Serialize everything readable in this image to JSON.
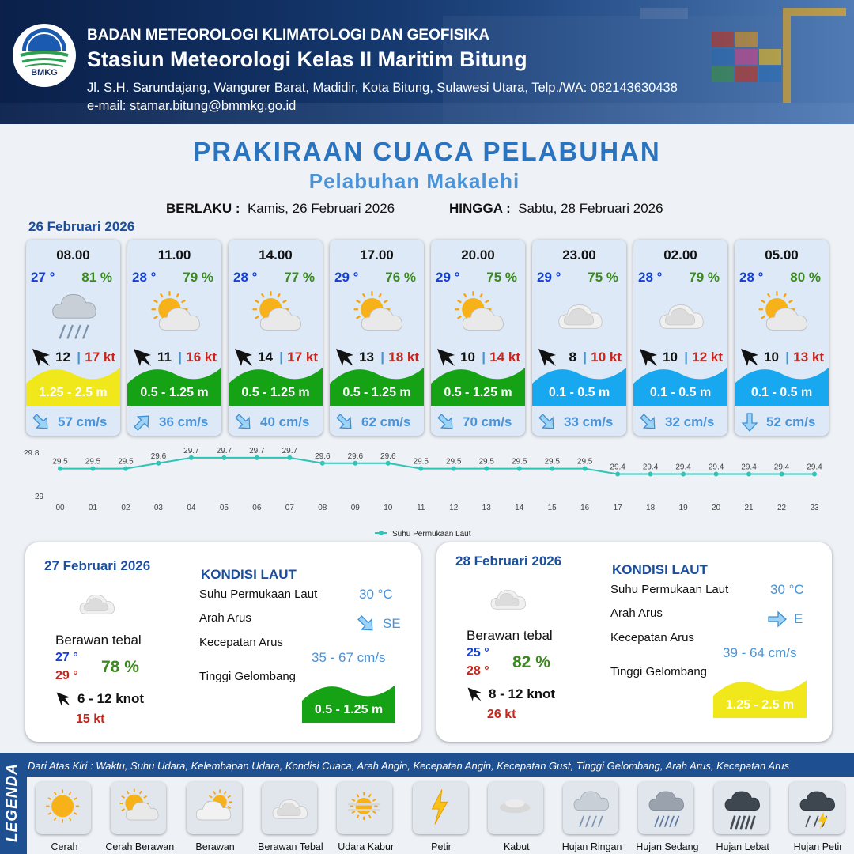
{
  "header": {
    "logo_text": "BMKG",
    "agency": "BADAN METEOROLOGI KLIMATOLOGI DAN GEOFISIKA",
    "station": "Stasiun Meteorologi Kelas II Maritim Bitung",
    "address": "Jl. S.H. Sarundajang, Wangurer Barat, Madidir, Kota Bitung, Sulawesi Utara, Telp./WA: 082143630438",
    "email": "e-mail: stamar.bitung@bmmkg.go.id"
  },
  "title": "PRAKIRAAN CUACA PELABUHAN",
  "subtitle": "Pelabuhan Makalehi",
  "validity": {
    "from_label": "BERLAKU :",
    "from_value": "Kamis, 26 Februari 2026",
    "to_label": "HINGGA :",
    "to_value": "Sabtu, 28 Februari 2026"
  },
  "day1_date": "26 Februari 2026",
  "forecast": [
    {
      "time": "08.00",
      "temp": "27 °",
      "humidity": "81 %",
      "icon": "hujan-ringan",
      "wind_dir_icon": "arrow-northwest",
      "wind_speed": "12",
      "gust": "17 kt",
      "wave": "1.25 - 2.5 m",
      "wave_color": "#f0e81a",
      "current_dir_icon": "arrow-southeast",
      "current_speed": "57 cm/s"
    },
    {
      "time": "11.00",
      "temp": "28 °",
      "humidity": "79 %",
      "icon": "cerah-berawan",
      "wind_dir_icon": "arrow-northwest",
      "wind_speed": "11",
      "gust": "16 kt",
      "wave": "0.5 - 1.25 m",
      "wave_color": "#15a315",
      "current_dir_icon": "arrow-northeast",
      "current_speed": "36 cm/s"
    },
    {
      "time": "14.00",
      "temp": "28 °",
      "humidity": "77 %",
      "icon": "cerah-berawan",
      "wind_dir_icon": "arrow-northwest",
      "wind_speed": "14",
      "gust": "17 kt",
      "wave": "0.5 - 1.25 m",
      "wave_color": "#15a315",
      "current_dir_icon": "arrow-southeast",
      "current_speed": "40 cm/s"
    },
    {
      "time": "17.00",
      "temp": "29 °",
      "humidity": "76 %",
      "icon": "cerah-berawan",
      "wind_dir_icon": "arrow-northwest",
      "wind_speed": "13",
      "gust": "18 kt",
      "wave": "0.5 - 1.25 m",
      "wave_color": "#15a315",
      "current_dir_icon": "arrow-southeast",
      "current_speed": "62 cm/s"
    },
    {
      "time": "20.00",
      "temp": "29 °",
      "humidity": "75 %",
      "icon": "cerah-berawan",
      "wind_dir_icon": "arrow-northwest",
      "wind_speed": "10",
      "gust": "14 kt",
      "wave": "0.5 - 1.25 m",
      "wave_color": "#15a315",
      "current_dir_icon": "arrow-southeast",
      "current_speed": "70 cm/s"
    },
    {
      "time": "23.00",
      "temp": "29 °",
      "humidity": "75 %",
      "icon": "berawan-tebal",
      "wind_dir_icon": "arrow-northwest",
      "wind_speed": "8",
      "gust": "10 kt",
      "wave": "0.1 - 0.5 m",
      "wave_color": "#18a8ef",
      "current_dir_icon": "arrow-southeast",
      "current_speed": "33 cm/s"
    },
    {
      "time": "02.00",
      "temp": "28 °",
      "humidity": "79 %",
      "icon": "berawan-tebal",
      "wind_dir_icon": "arrow-northwest",
      "wind_speed": "10",
      "gust": "12 kt",
      "wave": "0.1 - 0.5 m",
      "wave_color": "#18a8ef",
      "current_dir_icon": "arrow-southeast",
      "current_speed": "32 cm/s"
    },
    {
      "time": "05.00",
      "temp": "28 °",
      "humidity": "80 %",
      "icon": "cerah-berawan",
      "wind_dir_icon": "arrow-northwest",
      "wind_speed": "10",
      "gust": "13 kt",
      "wave": "0.1 - 0.5 m",
      "wave_color": "#18a8ef",
      "current_dir_icon": "arrow-south",
      "current_speed": "52 cm/s"
    }
  ],
  "chart_data": {
    "type": "line",
    "title": "",
    "xlabel": "",
    "ylabel": "",
    "categories": [
      "00",
      "01",
      "02",
      "03",
      "04",
      "05",
      "06",
      "07",
      "08",
      "09",
      "10",
      "11",
      "12",
      "13",
      "14",
      "15",
      "16",
      "17",
      "18",
      "19",
      "20",
      "21",
      "22",
      "23"
    ],
    "series": [
      {
        "name": "Suhu Permukaan Laut",
        "values": [
          29.5,
          29.5,
          29.5,
          29.6,
          29.7,
          29.7,
          29.7,
          29.7,
          29.6,
          29.6,
          29.6,
          29.5,
          29.5,
          29.5,
          29.5,
          29.5,
          29.5,
          29.4,
          29.4,
          29.4,
          29.4,
          29.4,
          29.4,
          29.4
        ],
        "labels": [
          "29.5",
          "29.5",
          "29.5",
          "29.6",
          "29.7",
          "29.7",
          "29.7",
          "29.7",
          "29.6",
          "29.6",
          "29.6",
          "29.5",
          "29.5",
          "29.5",
          "29.5",
          "29.5",
          "29.5",
          "29.4",
          "29.4",
          "29.4",
          "29.4",
          "29.4",
          "29.4",
          "29.4"
        ],
        "color": "#2ec4b6"
      }
    ],
    "y_ticks": [
      "29.8",
      "29"
    ],
    "ylim": [
      29,
      29.8
    ],
    "legend": "bottom-center",
    "grid": false
  },
  "panels": [
    {
      "date": "27 Februari 2026",
      "condition": "Berawan tebal",
      "icon": "berawan-tebal",
      "temp_min": "27 °",
      "temp_max": "29 °",
      "humidity": "78 %",
      "wind_dir_icon": "arrow-northwest",
      "wind": "6  - 12 knot",
      "gust": "15 kt",
      "kondisi_title": "KONDISI LAUT",
      "sst_label": "Suhu Permukaan Laut",
      "sst_value": "30 °C",
      "dir_label": "Arah Arus",
      "dir_icon": "arrow-southeast",
      "dir_value": "SE",
      "speed_label": "Kecepatan Arus",
      "speed_value": "35 - 67 cm/s",
      "wave_label": "Tinggi Gelombang",
      "wave_value": "0.5 - 1.25 m",
      "wave_color": "#15a315"
    },
    {
      "date": "28 Februari 2026",
      "condition": "Berawan tebal",
      "icon": "berawan-tebal",
      "temp_min": "25 °",
      "temp_max": "28 °",
      "humidity": "82 %",
      "wind_dir_icon": "arrow-northwest",
      "wind": "8  - 12 knot",
      "gust": "26 kt",
      "kondisi_title": "KONDISI LAUT",
      "sst_label": "Suhu Permukaan Laut",
      "sst_value": "30 °C",
      "dir_label": "Arah Arus",
      "dir_icon": "arrow-east",
      "dir_value": "E",
      "speed_label": "Kecepatan Arus",
      "speed_value": "39 - 64 cm/s",
      "wave_label": "Tinggi Gelombang",
      "wave_value": "1.25 - 2.5 m",
      "wave_color": "#f0e81a"
    }
  ],
  "legend": {
    "title": "LEGENDA",
    "description": "Dari Atas Kiri : Waktu, Suhu Udara, Kelembapan Udara, Kondisi Cuaca, Arah Angin, Kecepatan Angin, Kecepatan Gust, Tinggi Gelombang, Arah Arus, Kecepatan Arus",
    "items": [
      {
        "name": "Cerah",
        "icon": "cerah"
      },
      {
        "name": "Cerah Berawan",
        "icon": "cerah-berawan"
      },
      {
        "name": "Berawan",
        "icon": "berawan"
      },
      {
        "name": "Berawan Tebal",
        "icon": "berawan-tebal"
      },
      {
        "name": "Udara Kabur",
        "icon": "udara-kabur"
      },
      {
        "name": "Petir",
        "icon": "petir"
      },
      {
        "name": "Kabut",
        "icon": "kabut"
      },
      {
        "name": "Hujan Ringan",
        "icon": "hujan-ringan"
      },
      {
        "name": "Hujan Sedang",
        "icon": "hujan-sedang"
      },
      {
        "name": "Hujan Lebat",
        "icon": "hujan-lebat"
      },
      {
        "name": "Hujan Petir",
        "icon": "hujan-petir"
      }
    ]
  }
}
